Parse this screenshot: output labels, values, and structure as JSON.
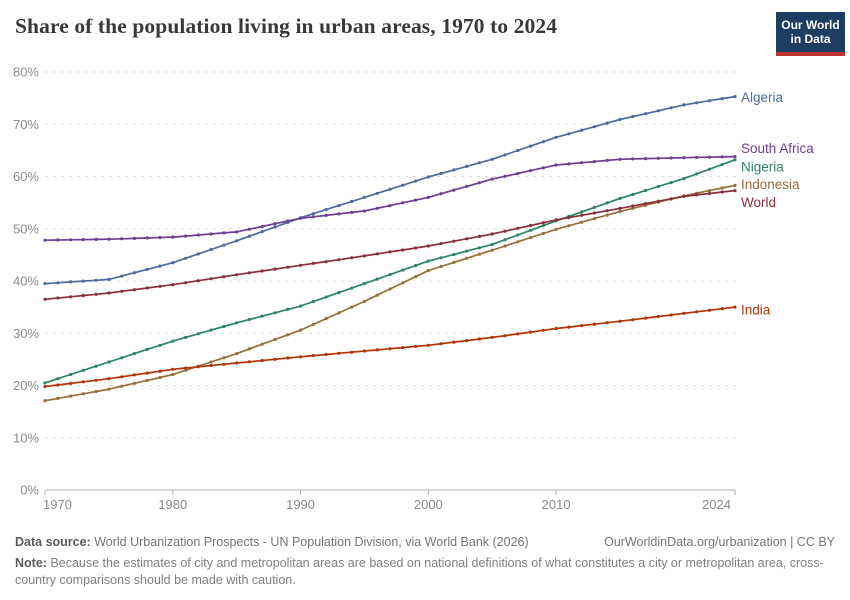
{
  "logo": {
    "line1": "Our World",
    "line2": "in Data",
    "bg_color": "#1d3d63",
    "accent_color": "#c0342f"
  },
  "chart_data": {
    "type": "line",
    "title": "Share of the population living in urban areas, 1970 to 2024",
    "xlabel": "",
    "ylabel": "",
    "x": [
      1970,
      1975,
      1980,
      1985,
      1990,
      1995,
      2000,
      2005,
      2010,
      2015,
      2020,
      2024
    ],
    "series": [
      {
        "name": "Algeria",
        "color": "#4C6A9C",
        "label_offset": 1,
        "values": [
          39.5,
          40.3,
          43.5,
          47.7,
          52.1,
          56.0,
          59.9,
          63.3,
          67.5,
          70.9,
          73.7,
          75.3
        ]
      },
      {
        "name": "South Africa",
        "color": "#6D3E91",
        "label_offset": -8,
        "values": [
          47.8,
          48.0,
          48.4,
          49.4,
          52.0,
          53.4,
          56.0,
          59.5,
          62.2,
          63.3,
          63.6,
          63.8
        ]
      },
      {
        "name": "Nigeria",
        "color": "#2C8465",
        "label_offset": 7,
        "values": [
          20.5,
          24.5,
          28.5,
          32.0,
          35.2,
          39.5,
          43.8,
          47.0,
          51.5,
          55.8,
          59.6,
          63.2
        ]
      },
      {
        "name": "Indonesia",
        "color": "#996D39",
        "label_offset": -1,
        "values": [
          17.1,
          19.3,
          22.1,
          26.1,
          30.6,
          36.1,
          42.0,
          45.9,
          49.9,
          53.3,
          56.3,
          58.3
        ]
      },
      {
        "name": "World",
        "color": "#883039",
        "label_offset": 12,
        "values": [
          36.5,
          37.7,
          39.3,
          41.2,
          43.0,
          44.8,
          46.7,
          49.0,
          51.7,
          53.9,
          56.2,
          57.3
        ]
      },
      {
        "name": "India",
        "color": "#B13507",
        "label_offset": 3,
        "values": [
          19.8,
          21.3,
          23.1,
          24.3,
          25.5,
          26.6,
          27.7,
          29.2,
          30.9,
          32.3,
          33.8,
          35.0
        ]
      }
    ],
    "xlim": [
      1970,
      2024
    ],
    "ylim": [
      0,
      80
    ],
    "yticks": [
      0,
      10,
      20,
      30,
      40,
      50,
      60,
      70,
      80
    ],
    "ytick_suffix": "%",
    "xticks": [
      1970,
      1980,
      1990,
      2000,
      2010,
      2024
    ],
    "grid": "horizontal-dashed",
    "grid_color": "#dcdcdc",
    "axis_color": "#b0b0b0",
    "legend_position": "right-end-labels",
    "marker_interval_years": 1
  },
  "footer": {
    "datasource_label": "Data source:",
    "datasource_text": " World Urbanization Prospects - UN Population Division, via World Bank (2026)",
    "link_text": "OurWorldinData.org/urbanization | CC BY",
    "note_label": "Note:",
    "note_text": " Because the estimates of city and metropolitan areas are based on national definitions of what constitutes a city or metropolitan area, cross-country comparisons should be made with caution."
  }
}
